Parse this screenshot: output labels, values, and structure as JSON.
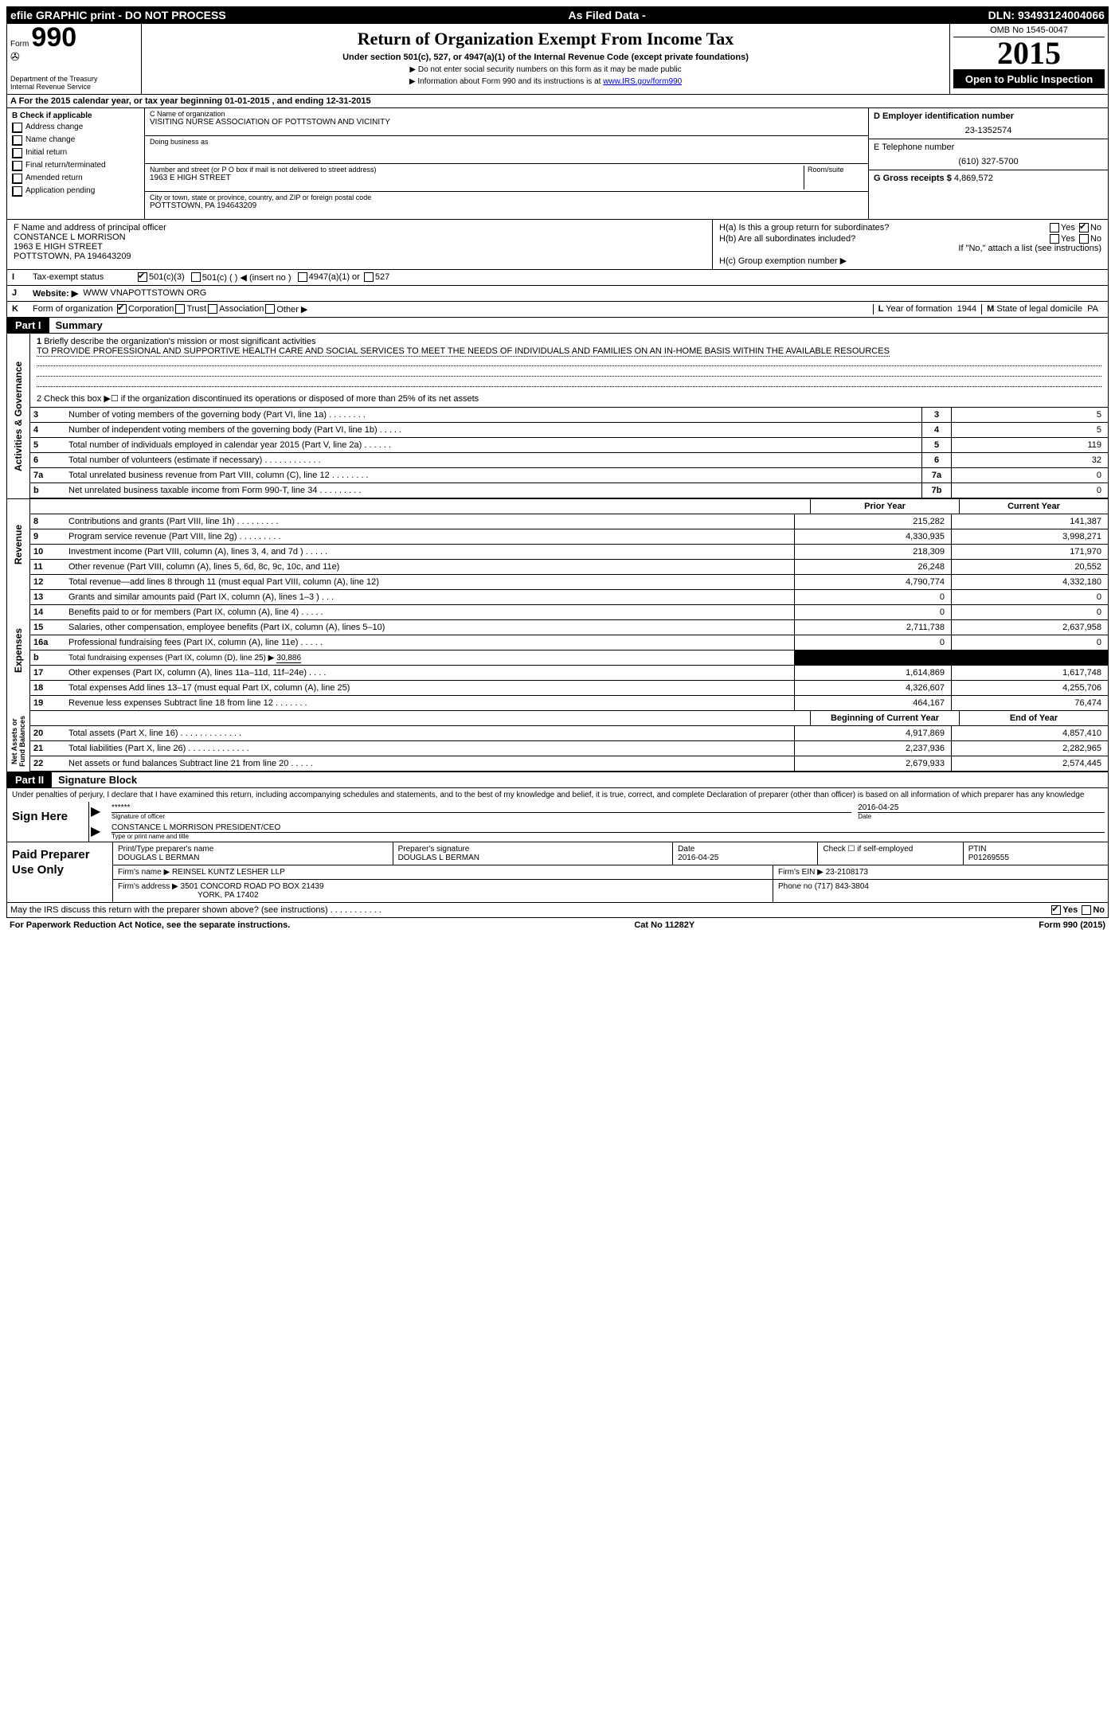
{
  "topbar": {
    "left": "efile GRAPHIC print - DO NOT PROCESS",
    "mid": "As Filed Data -",
    "right": "DLN: 93493124004066"
  },
  "header": {
    "form_prefix": "Form",
    "form_num": "990",
    "dept1": "Department of the Treasury",
    "dept2": "Internal Revenue Service",
    "title": "Return of Organization Exempt From Income Tax",
    "sub": "Under section 501(c), 527, or 4947(a)(1) of the Internal Revenue Code (except private foundations)",
    "arrow1": "▶ Do not enter social security numbers on this form as it may be made public",
    "arrow2_pre": "▶ Information about Form 990 and its instructions is at ",
    "arrow2_link": "www.IRS.gov/form990",
    "omb": "OMB No 1545-0047",
    "year": "2015",
    "open": "Open to Public Inspection"
  },
  "lineA": "A  For the 2015 calendar year, or tax year beginning 01-01-2015    , and ending 12-31-2015",
  "boxB": {
    "title": "B  Check if applicable",
    "items": [
      "Address change",
      "Name change",
      "Initial return",
      "Final return/terminated",
      "Amended return",
      "Application pending"
    ]
  },
  "boxC": {
    "label_name": "C Name of organization",
    "name": "VISITING NURSE ASSOCIATION OF POTTSTOWN AND VICINITY",
    "dba_label": "Doing business as",
    "addr_label": "Number and street (or P O  box if mail is not delivered to street address)",
    "room_label": "Room/suite",
    "addr": "1963 E HIGH STREET",
    "city_label": "City or town, state or province, country, and ZIP or foreign postal code",
    "city": "POTTSTOWN, PA  194643209"
  },
  "boxD": {
    "label": "D Employer identification number",
    "val": "23-1352574"
  },
  "boxE": {
    "label": "E Telephone number",
    "val": "(610) 327-5700"
  },
  "boxG": {
    "label": "G Gross receipts $",
    "val": "4,869,572"
  },
  "boxF": {
    "label": "F    Name and address of principal officer",
    "l1": "CONSTANCE L MORRISON",
    "l2": "1963 E HIGH STREET",
    "l3": "POTTSTOWN, PA  194643209"
  },
  "boxH": {
    "a": "H(a)  Is this a group return for subordinates?",
    "b": "H(b)  Are all subordinates included?",
    "note": "If \"No,\" attach a list  (see instructions)",
    "c": "H(c)  Group exemption number ▶",
    "yes": "Yes",
    "no": "No"
  },
  "lineI": {
    "lbl": "I",
    "txt": "Tax-exempt status",
    "opt1": "501(c)(3)",
    "opt2": "501(c) (  ) ◀ (insert no )",
    "opt3": "4947(a)(1) or",
    "opt4": "527"
  },
  "lineJ": {
    "lbl": "J",
    "txt": "Website: ▶",
    "val": "WWW VNAPOTTSTOWN ORG"
  },
  "lineK": {
    "lbl": "K",
    "txt": "Form of organization",
    "opts": [
      "Corporation",
      "Trust",
      "Association",
      "Other ▶"
    ],
    "l_lbl": "L",
    "l_txt": "Year of formation",
    "l_val": "1944",
    "m_lbl": "M",
    "m_txt": "State of legal domicile",
    "m_val": "PA"
  },
  "part1": {
    "num": "Part I",
    "title": "Summary"
  },
  "summary": {
    "q1_label": "1",
    "q1_text": "Briefly describe the organization's mission or most significant activities",
    "q1_val": "TO PROVIDE PROFESSIONAL AND SUPPORTIVE HEALTH CARE AND SOCIAL SERVICES TO MEET THE NEEDS OF INDIVIDUALS AND FAMILIES ON AN IN-HOME BASIS WITHIN THE AVAILABLE RESOURCES",
    "q2": "2  Check this box ▶☐ if the organization discontinued its operations or disposed of more than 25% of its net assets"
  },
  "gov_rows": [
    {
      "n": "3",
      "d": "Number of voting members of the governing body (Part VI, line 1a)   .    .    .    .    .    .    .    .",
      "b": "3",
      "v": "5"
    },
    {
      "n": "4",
      "d": "Number of independent voting members of the governing body (Part VI, line 1b)   .    .    .    .    .",
      "b": "4",
      "v": "5"
    },
    {
      "n": "5",
      "d": "Total number of individuals employed in calendar year 2015 (Part V, line 2a)    .    .    .    .    .    .",
      "b": "5",
      "v": "119"
    },
    {
      "n": "6",
      "d": "Total number of volunteers (estimate if necessary)    .    .    .    .    .    .    .    .    .    .    .    .",
      "b": "6",
      "v": "32"
    },
    {
      "n": "7a",
      "d": "Total unrelated business revenue from Part VIII, column (C), line 12   .    .    .    .    .    .    .    .",
      "b": "7a",
      "v": "0"
    },
    {
      "n": "b",
      "d": "Net unrelated business taxable income from Form 990-T, line 34    .    .    .    .    .    .    .    .    .",
      "b": "7b",
      "v": "0"
    }
  ],
  "col_hdr": {
    "c1": "Prior Year",
    "c2": "Current Year"
  },
  "rev_rows": [
    {
      "n": "8",
      "d": "Contributions and grants (Part VIII, line 1h)   .    .    .    .    .    .    .    .    .",
      "c1": "215,282",
      "c2": "141,387"
    },
    {
      "n": "9",
      "d": "Program service revenue (Part VIII, line 2g)    .    .    .    .    .    .    .    .    .",
      "c1": "4,330,935",
      "c2": "3,998,271"
    },
    {
      "n": "10",
      "d": "Investment income (Part VIII, column (A), lines 3, 4, and 7d )   .    .    .    .    .",
      "c1": "218,309",
      "c2": "171,970"
    },
    {
      "n": "11",
      "d": "Other revenue (Part VIII, column (A), lines 5, 6d, 8c, 9c, 10c, and 11e)",
      "c1": "26,248",
      "c2": "20,552"
    },
    {
      "n": "12",
      "d": "Total revenue—add lines 8 through 11 (must equal Part VIII, column (A), line 12)",
      "c1": "4,790,774",
      "c2": "4,332,180"
    }
  ],
  "exp_rows": [
    {
      "n": "13",
      "d": "Grants and similar amounts paid (Part IX, column (A), lines 1–3 )   .    .    .",
      "c1": "0",
      "c2": "0"
    },
    {
      "n": "14",
      "d": "Benefits paid to or for members (Part IX, column (A), line 4)   .    .    .    .    .",
      "c1": "0",
      "c2": "0"
    },
    {
      "n": "15",
      "d": "Salaries, other compensation, employee benefits (Part IX, column (A), lines 5–10)",
      "c1": "2,711,738",
      "c2": "2,637,958"
    },
    {
      "n": "16a",
      "d": "Professional fundraising fees (Part IX, column (A), line 11e)   .    .    .    .    .",
      "c1": "0",
      "c2": "0"
    }
  ],
  "exp_b": {
    "n": "b",
    "d_pre": "Total fundraising expenses (Part IX, column (D), line 25) ▶",
    "d_val": "30,886"
  },
  "exp_rows2": [
    {
      "n": "17",
      "d": "Other expenses (Part IX, column (A), lines 11a–11d, 11f–24e)   .    .    .    .",
      "c1": "1,614,869",
      "c2": "1,617,748"
    },
    {
      "n": "18",
      "d": "Total expenses  Add lines 13–17 (must equal Part IX, column (A), line 25)",
      "c1": "4,326,607",
      "c2": "4,255,706"
    },
    {
      "n": "19",
      "d": "Revenue less expenses  Subtract line 18 from line 12    .    .    .    .    .    .    .",
      "c1": "464,167",
      "c2": "76,474"
    }
  ],
  "na_hdr": {
    "c1": "Beginning of Current Year",
    "c2": "End of Year"
  },
  "na_rows": [
    {
      "n": "20",
      "d": "Total assets (Part X, line 16)    .    .    .    .    .    .    .    .    .    .    .    .    .",
      "c1": "4,917,869",
      "c2": "4,857,410"
    },
    {
      "n": "21",
      "d": "Total liabilities (Part X, line 26)   .    .    .    .    .    .    .    .    .    .    .    .    .",
      "c1": "2,237,936",
      "c2": "2,282,965"
    },
    {
      "n": "22",
      "d": "Net assets or fund balances  Subtract line 21 from line 20    .    .    .    .    .",
      "c1": "2,679,933",
      "c2": "2,574,445"
    }
  ],
  "vtabs": {
    "gov": "Activities & Governance",
    "rev": "Revenue",
    "exp": "Expenses",
    "na": "Net Assets or Fund Balances"
  },
  "part2": {
    "num": "Part II",
    "title": "Signature Block"
  },
  "perjury": "Under penalties of perjury, I declare that I have examined this return, including accompanying schedules and statements, and to the best of my knowledge and belief, it is true, correct, and complete  Declaration of preparer (other than officer) is based on all information of which preparer has any knowledge",
  "sign": {
    "here": "Sign Here",
    "stars": "******",
    "sig_lbl": "Signature of officer",
    "date_lbl": "Date",
    "date": "2016-04-25",
    "name": "CONSTANCE L MORRISON  PRESIDENT/CEO",
    "name_lbl": "Type or print name and title"
  },
  "prep": {
    "title": "Paid Preparer Use Only",
    "c1": "Print/Type preparer's name",
    "v1": "DOUGLAS L BERMAN",
    "c2": "Preparer's signature",
    "v2": "DOUGLAS L BERMAN",
    "c3": "Date",
    "v3": "2016-04-25",
    "c4": "Check ☐ if self-employed",
    "c5": "PTIN",
    "v5": "P01269555",
    "firm_lbl": "Firm's name      ▶",
    "firm": "REINSEL KUNTZ LESHER LLP",
    "ein_lbl": "Firm's EIN ▶",
    "ein": "23-2108173",
    "addr_lbl": "Firm's address ▶",
    "addr1": "3501 CONCORD ROAD PO BOX 21439",
    "addr2": "YORK, PA  17402",
    "phone_lbl": "Phone no",
    "phone": "(717) 843-3804"
  },
  "discuss": {
    "q": "May the IRS discuss this return with the preparer shown above? (see instructions)    .    .    .    .    .    .    .    .    .    .    .",
    "yes": "Yes",
    "no": "No"
  },
  "footer": {
    "left": "For Paperwork Reduction Act Notice, see the separate instructions.",
    "mid": "Cat No  11282Y",
    "right_pre": "Form",
    "right_b": "990",
    "right_suf": "(2015)"
  }
}
